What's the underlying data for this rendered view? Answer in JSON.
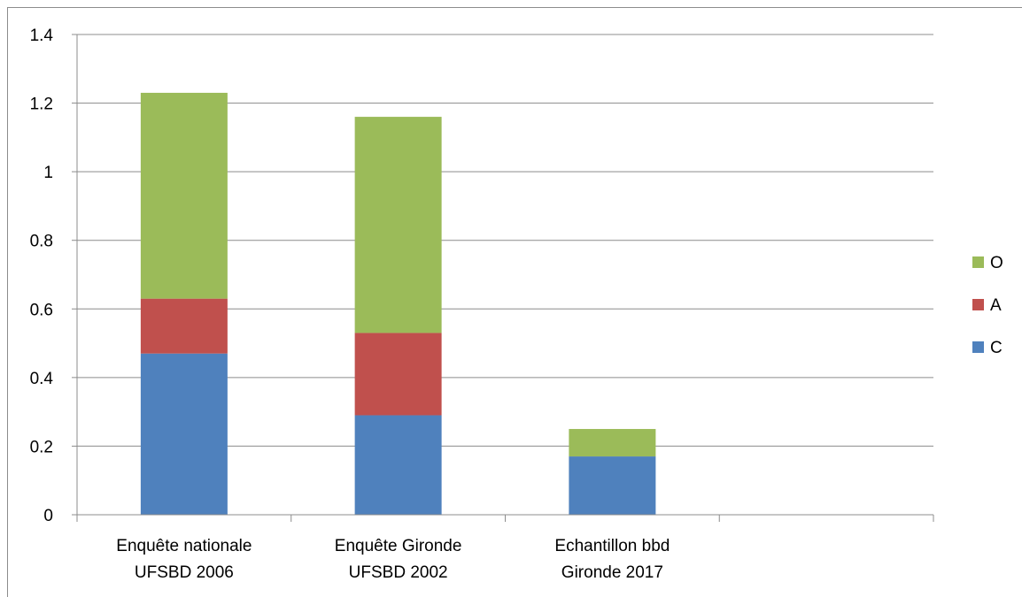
{
  "chart_data": {
    "type": "bar",
    "stacked": true,
    "categories": [
      [
        "Enquête nationale",
        "UFSBD 2006"
      ],
      [
        "Enquête Gironde",
        "UFSBD 2002"
      ],
      [
        "Echantillon bbd",
        "Gironde 2017"
      ],
      [
        "",
        ""
      ]
    ],
    "series": [
      {
        "name": "C",
        "color": "#4f81bd",
        "values": [
          0.47,
          0.29,
          0.17,
          null
        ]
      },
      {
        "name": "A",
        "color": "#c0504d",
        "values": [
          0.16,
          0.24,
          0.0,
          null
        ]
      },
      {
        "name": "O",
        "color": "#9bbb59",
        "values": [
          0.6,
          0.63,
          0.08,
          null
        ]
      }
    ],
    "ylim": [
      0,
      1.4
    ],
    "yticks": [
      "0",
      "0.2",
      "0.4",
      "0.6",
      "0.8",
      "1",
      "1.2",
      "1.4"
    ],
    "grid": true,
    "legend_position": "right",
    "legend_order": [
      "O",
      "A",
      "C"
    ]
  }
}
